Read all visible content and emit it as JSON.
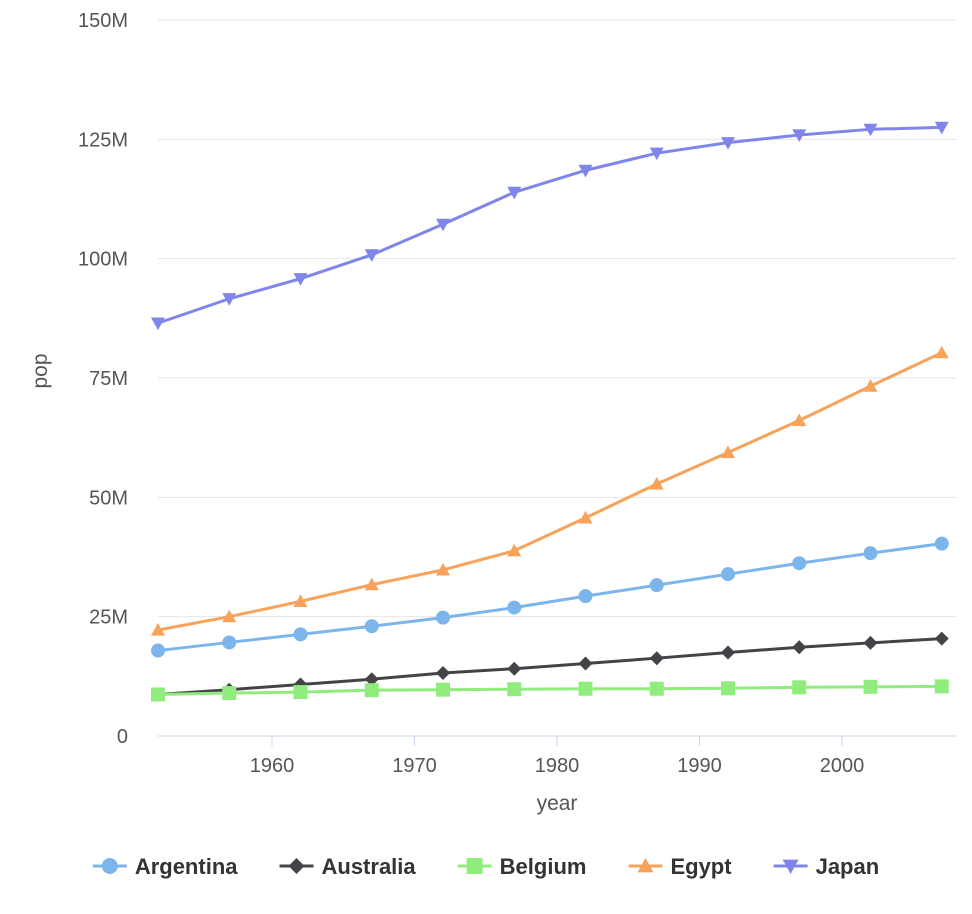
{
  "chart_data": {
    "type": "line",
    "title": "",
    "xlabel": "year",
    "ylabel": "pop",
    "x": [
      1952,
      1957,
      1962,
      1967,
      1972,
      1977,
      1982,
      1987,
      1992,
      1997,
      2002,
      2007
    ],
    "xlim": [
      1952,
      2008
    ],
    "xticks": [
      1960,
      1970,
      1980,
      1990,
      2000
    ],
    "xtick_labels": [
      "1960",
      "1970",
      "1980",
      "1990",
      "2000"
    ],
    "ylim": [
      0,
      150000000
    ],
    "yticks": [
      0,
      25000000,
      50000000,
      75000000,
      100000000,
      125000000,
      150000000
    ],
    "ytick_labels": [
      "0",
      "25M",
      "50M",
      "75M",
      "100M",
      "125M",
      "150M"
    ],
    "grid": "horizontal",
    "legend_position": "bottom",
    "series": [
      {
        "name": "Argentina",
        "color": "#7cb5ec",
        "marker": "circle",
        "values": [
          17900000,
          19600000,
          21300000,
          23000000,
          24800000,
          26900000,
          29300000,
          31600000,
          33900000,
          36200000,
          38300000,
          40300000
        ]
      },
      {
        "name": "Australia",
        "color": "#434348",
        "marker": "diamond",
        "values": [
          8700000,
          9700000,
          10800000,
          11900000,
          13200000,
          14100000,
          15200000,
          16300000,
          17500000,
          18600000,
          19500000,
          20400000
        ]
      },
      {
        "name": "Belgium",
        "color": "#90ed7d",
        "marker": "square",
        "values": [
          8700000,
          9000000,
          9200000,
          9600000,
          9700000,
          9800000,
          9900000,
          9900000,
          10000000,
          10200000,
          10300000,
          10400000
        ]
      },
      {
        "name": "Egypt",
        "color": "#f7a35c",
        "marker": "triangle",
        "values": [
          22200000,
          25000000,
          28200000,
          31700000,
          34800000,
          38800000,
          45700000,
          52800000,
          59400000,
          66100000,
          73300000,
          80300000
        ]
      },
      {
        "name": "Japan",
        "color": "#8085e9",
        "marker": "triangle-down",
        "values": [
          86500000,
          91600000,
          95800000,
          100800000,
          107200000,
          113900000,
          118500000,
          122100000,
          124300000,
          125900000,
          127100000,
          127500000
        ]
      }
    ]
  }
}
